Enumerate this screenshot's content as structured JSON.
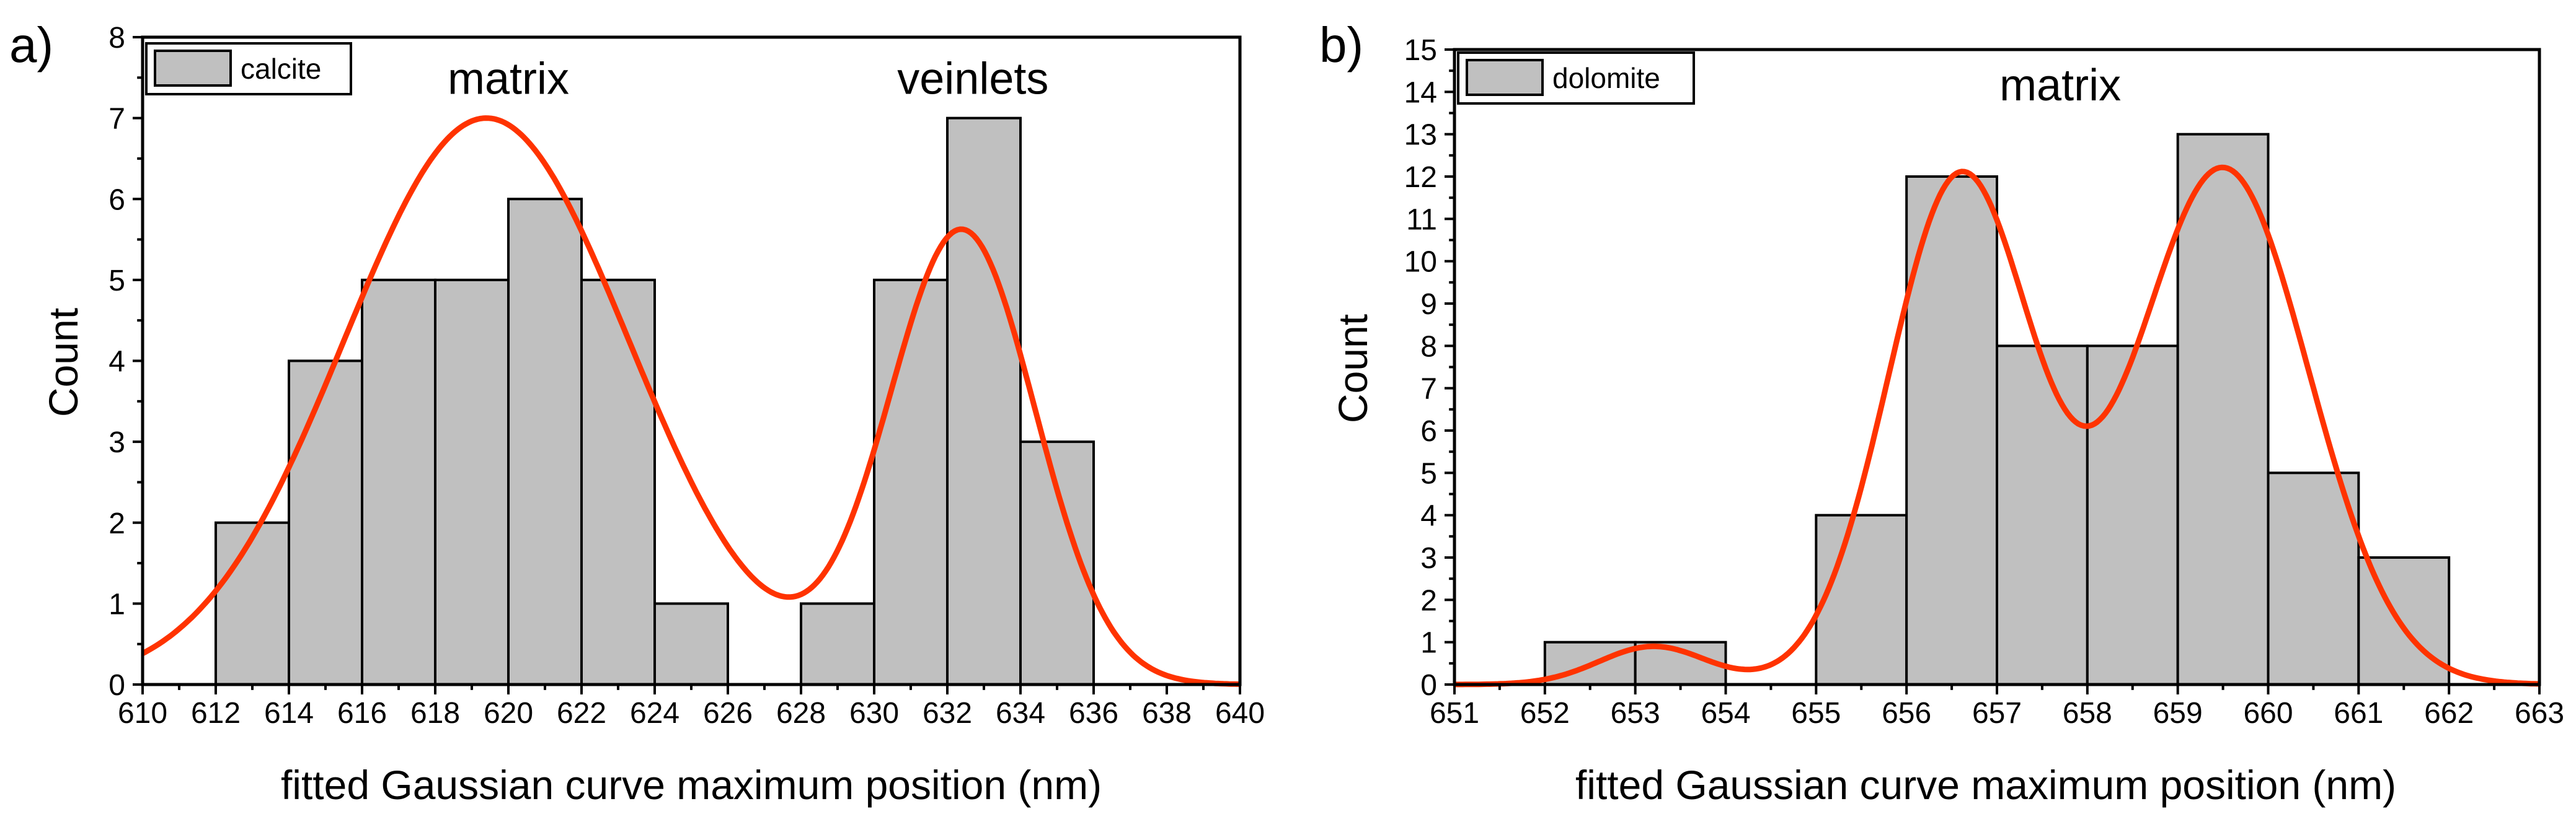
{
  "chart_data": [
    {
      "panel_label": "a)",
      "type": "bar",
      "subtype": "histogram",
      "legend": {
        "label": "calcite",
        "position": "top-left",
        "color": "#c0c0c0"
      },
      "xlabel": "fitted Gaussian curve maximum position (nm)",
      "ylabel": "Count",
      "xlim": [
        610,
        640
      ],
      "ylim": [
        0,
        8
      ],
      "xticks": [
        "610",
        "612",
        "614",
        "616",
        "618",
        "620",
        "622",
        "624",
        "626",
        "628",
        "630",
        "632",
        "634",
        "636",
        "638",
        "640"
      ],
      "yticks": [
        "0",
        "1",
        "2",
        "3",
        "4",
        "5",
        "6",
        "7",
        "8"
      ],
      "bin_width": 2,
      "bins": [
        {
          "start": 612,
          "end": 614,
          "count": 2
        },
        {
          "start": 614,
          "end": 616,
          "count": 4
        },
        {
          "start": 616,
          "end": 618,
          "count": 5
        },
        {
          "start": 618,
          "end": 620,
          "count": 5
        },
        {
          "start": 620,
          "end": 622,
          "count": 6
        },
        {
          "start": 622,
          "end": 624,
          "count": 5
        },
        {
          "start": 624,
          "end": 626,
          "count": 1
        },
        {
          "start": 628,
          "end": 630,
          "count": 1
        },
        {
          "start": 630,
          "end": 632,
          "count": 5
        },
        {
          "start": 632,
          "end": 634,
          "count": 7
        },
        {
          "start": 634,
          "end": 636,
          "count": 3
        }
      ],
      "fit_curve": {
        "name": "Gaussian fit",
        "color": "#ff3300",
        "components": [
          {
            "amplitude": 7.0,
            "center": 619.4,
            "sigma": 3.9
          },
          {
            "amplitude": 5.6,
            "center": 632.4,
            "sigma": 2.0
          }
        ]
      },
      "annotations": [
        {
          "text": "matrix",
          "x": 620.0,
          "y": 7.3
        },
        {
          "text": "veinlets",
          "x": 632.7,
          "y": 7.3
        }
      ],
      "bar_color": "#c0c0c0"
    },
    {
      "panel_label": "b)",
      "type": "bar",
      "subtype": "histogram",
      "legend": {
        "label": "dolomite",
        "position": "top-left",
        "color": "#c0c0c0"
      },
      "xlabel": "fitted Gaussian curve maximum position (nm)",
      "ylabel": "Count",
      "xlim": [
        651,
        663
      ],
      "ylim": [
        0,
        15
      ],
      "xticks": [
        "651",
        "652",
        "653",
        "654",
        "655",
        "656",
        "657",
        "658",
        "659",
        "660",
        "661",
        "662",
        "663"
      ],
      "yticks": [
        "0",
        "1",
        "2",
        "3",
        "4",
        "5",
        "6",
        "7",
        "8",
        "9",
        "10",
        "11",
        "12",
        "13",
        "14",
        "15"
      ],
      "bin_width": 1,
      "bins": [
        {
          "start": 652,
          "end": 653,
          "count": 1
        },
        {
          "start": 653,
          "end": 654,
          "count": 1
        },
        {
          "start": 655,
          "end": 656,
          "count": 4
        },
        {
          "start": 656,
          "end": 657,
          "count": 12
        },
        {
          "start": 657,
          "end": 658,
          "count": 8
        },
        {
          "start": 658,
          "end": 659,
          "count": 8
        },
        {
          "start": 659,
          "end": 660,
          "count": 13
        },
        {
          "start": 660,
          "end": 661,
          "count": 5
        },
        {
          "start": 661,
          "end": 662,
          "count": 3
        }
      ],
      "fit_curve": {
        "name": "Gaussian fit",
        "color": "#ff3300",
        "components": [
          {
            "amplitude": 0.9,
            "center": 653.2,
            "sigma": 0.6
          },
          {
            "amplitude": 12.0,
            "center": 656.6,
            "sigma": 0.8
          },
          {
            "amplitude": 12.2,
            "center": 659.5,
            "sigma": 0.95
          }
        ]
      },
      "annotations": [
        {
          "text": "matrix",
          "x": 657.7,
          "y": 13.8
        }
      ],
      "bar_color": "#c0c0c0"
    }
  ]
}
